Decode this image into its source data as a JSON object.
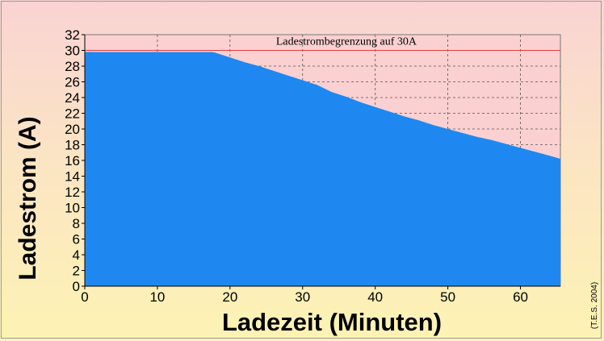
{
  "chart_data": {
    "type": "area",
    "title": "",
    "xlabel": "Ladezeit (Minuten)",
    "ylabel": "Ladestrom (A)",
    "xlim": [
      0,
      65.5
    ],
    "ylim": [
      0,
      32
    ],
    "xticks": [
      0,
      10,
      20,
      30,
      40,
      50,
      60
    ],
    "yticks": [
      0,
      2,
      4,
      6,
      8,
      10,
      12,
      14,
      16,
      18,
      20,
      22,
      24,
      26,
      28,
      30,
      32
    ],
    "grid": "dashed",
    "series": [
      {
        "x": [
          0,
          5,
          10,
          15,
          17.5,
          18,
          20,
          22,
          24,
          26,
          28,
          30,
          32,
          34,
          36,
          38,
          40,
          42,
          44,
          46,
          48,
          50,
          52,
          54,
          56,
          58,
          60,
          62,
          64,
          65.5
        ],
        "values": [
          29.8,
          29.8,
          29.8,
          29.8,
          29.8,
          29.7,
          29.1,
          28.5,
          28.0,
          27.4,
          26.8,
          26.2,
          25.6,
          24.7,
          24.1,
          23.4,
          22.8,
          22.2,
          21.6,
          21.1,
          20.5,
          20.0,
          19.5,
          19.0,
          18.6,
          18.1,
          17.6,
          17.1,
          16.6,
          16.2
        ],
        "color": "#1e88f0"
      }
    ],
    "reference_line": {
      "y": 30,
      "label": "Ladestrombegrenzung auf 30A",
      "color": "#e04040"
    },
    "credit": "(T.E.S. 2004)"
  }
}
